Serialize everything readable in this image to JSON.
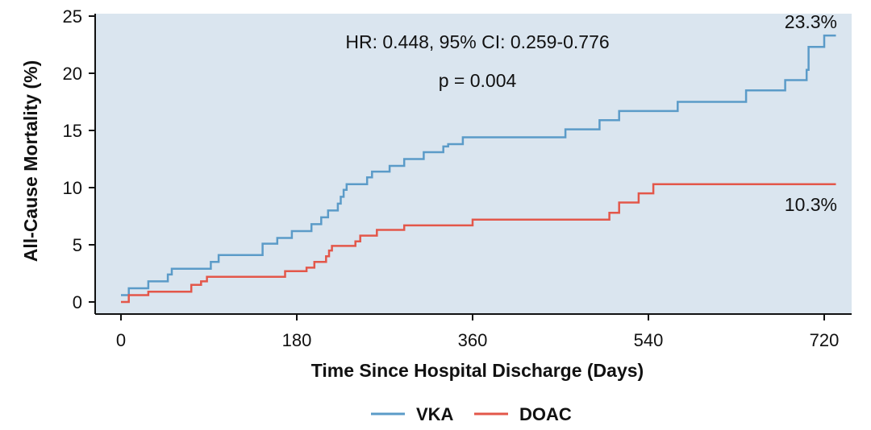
{
  "chart_data": {
    "type": "line",
    "style": "step",
    "xlabel": "Time Since Hospital Discharge (Days)",
    "ylabel": "All-Cause Mortality (%)",
    "xlim": [
      0,
      720
    ],
    "ylim": [
      0,
      25
    ],
    "xticks": [
      0,
      180,
      360,
      540,
      720
    ],
    "yticks": [
      0,
      5,
      10,
      15,
      20,
      25
    ],
    "grid": false,
    "background": "#dae5ef",
    "legend_position": "bottom-center",
    "annotations": {
      "hr": "HR: 0.448, 95% CI: 0.259-0.776",
      "p": "p = 0.004",
      "vka_end": "23.3%",
      "doac_end": "10.3%"
    },
    "series": [
      {
        "name": "VKA",
        "color": "#5b9bc8",
        "points": [
          [
            0,
            0.6
          ],
          [
            8,
            0.6
          ],
          [
            8,
            1.2
          ],
          [
            13,
            1.2
          ],
          [
            13,
            1.2
          ],
          [
            28,
            1.2
          ],
          [
            28,
            1.8
          ],
          [
            44,
            1.8
          ],
          [
            44,
            1.8
          ],
          [
            48,
            1.8
          ],
          [
            48,
            2.4
          ],
          [
            52,
            2.4
          ],
          [
            52,
            2.9
          ],
          [
            68,
            2.9
          ],
          [
            68,
            2.9
          ],
          [
            92,
            2.9
          ],
          [
            92,
            3.5
          ],
          [
            100,
            3.5
          ],
          [
            100,
            4.1
          ],
          [
            125,
            4.1
          ],
          [
            125,
            4.1
          ],
          [
            145,
            4.1
          ],
          [
            145,
            5.1
          ],
          [
            160,
            5.1
          ],
          [
            160,
            5.6
          ],
          [
            175,
            5.6
          ],
          [
            175,
            6.2
          ],
          [
            190,
            6.2
          ],
          [
            190,
            6.2
          ],
          [
            195,
            6.2
          ],
          [
            195,
            6.8
          ],
          [
            205,
            6.8
          ],
          [
            205,
            7.4
          ],
          [
            212,
            7.4
          ],
          [
            212,
            8.0
          ],
          [
            222,
            8.0
          ],
          [
            222,
            8.6
          ],
          [
            225,
            8.6
          ],
          [
            225,
            9.2
          ],
          [
            228,
            9.2
          ],
          [
            228,
            9.8
          ],
          [
            231,
            9.8
          ],
          [
            231,
            10.3
          ],
          [
            252,
            10.3
          ],
          [
            252,
            10.9
          ],
          [
            257,
            10.9
          ],
          [
            257,
            11.4
          ],
          [
            275,
            11.4
          ],
          [
            275,
            11.9
          ],
          [
            290,
            11.9
          ],
          [
            290,
            12.5
          ],
          [
            310,
            12.5
          ],
          [
            310,
            13.1
          ],
          [
            330,
            13.1
          ],
          [
            330,
            13.6
          ],
          [
            335,
            13.6
          ],
          [
            335,
            13.8
          ],
          [
            350,
            13.8
          ],
          [
            350,
            14.4
          ],
          [
            370,
            14.4
          ],
          [
            370,
            14.4
          ],
          [
            455,
            14.4
          ],
          [
            455,
            15.1
          ],
          [
            490,
            15.1
          ],
          [
            490,
            15.9
          ],
          [
            510,
            15.9
          ],
          [
            510,
            16.7
          ],
          [
            570,
            16.7
          ],
          [
            570,
            17.5
          ],
          [
            640,
            17.5
          ],
          [
            640,
            18.5
          ],
          [
            680,
            18.5
          ],
          [
            680,
            19.4
          ],
          [
            702,
            19.4
          ],
          [
            702,
            20.3
          ],
          [
            704,
            20.3
          ],
          [
            704,
            22.3
          ],
          [
            720,
            22.3
          ],
          [
            720,
            23.3
          ],
          [
            732,
            23.3
          ]
        ]
      },
      {
        "name": "DOAC",
        "color": "#e3574a",
        "points": [
          [
            0,
            0.0
          ],
          [
            8,
            0.0
          ],
          [
            8,
            0.6
          ],
          [
            28,
            0.6
          ],
          [
            28,
            0.9
          ],
          [
            72,
            0.9
          ],
          [
            72,
            1.5
          ],
          [
            82,
            1.5
          ],
          [
            82,
            1.8
          ],
          [
            88,
            1.8
          ],
          [
            88,
            2.2
          ],
          [
            120,
            2.2
          ],
          [
            120,
            2.2
          ],
          [
            168,
            2.2
          ],
          [
            168,
            2.7
          ],
          [
            190,
            2.7
          ],
          [
            190,
            3.0
          ],
          [
            198,
            3.0
          ],
          [
            198,
            3.5
          ],
          [
            210,
            3.5
          ],
          [
            210,
            4.0
          ],
          [
            213,
            4.0
          ],
          [
            213,
            4.5
          ],
          [
            216,
            4.5
          ],
          [
            216,
            4.9
          ],
          [
            240,
            4.9
          ],
          [
            240,
            5.3
          ],
          [
            245,
            5.3
          ],
          [
            245,
            5.8
          ],
          [
            262,
            5.8
          ],
          [
            262,
            6.3
          ],
          [
            290,
            6.3
          ],
          [
            290,
            6.7
          ],
          [
            360,
            6.7
          ],
          [
            360,
            7.2
          ],
          [
            500,
            7.2
          ],
          [
            500,
            7.8
          ],
          [
            510,
            7.8
          ],
          [
            510,
            8.7
          ],
          [
            530,
            8.7
          ],
          [
            530,
            9.5
          ],
          [
            545,
            9.5
          ],
          [
            545,
            10.3
          ],
          [
            732,
            10.3
          ]
        ]
      }
    ]
  }
}
